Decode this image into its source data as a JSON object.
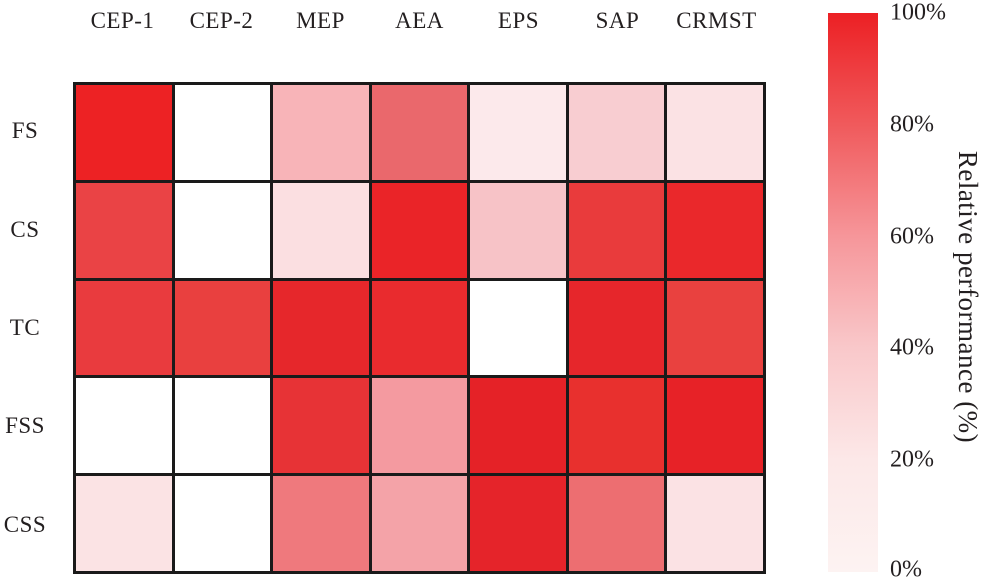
{
  "figure": {
    "background": "#ffffff",
    "text_color": "#231f20",
    "grid_line_color": "#1a1a1a"
  },
  "chart_data": {
    "type": "heatmap",
    "title": "",
    "xlabel": "",
    "ylabel": "",
    "columns": [
      "CEP-1",
      "CEP-2",
      "MEP",
      "AEA",
      "EPS",
      "SAP",
      "CRMST"
    ],
    "rows": [
      "FS",
      "CS",
      "TC",
      "FSS",
      "CSS"
    ],
    "value_unit": "%",
    "value_range": [
      0,
      100
    ],
    "values": [
      [
        100,
        0,
        47,
        76,
        18,
        37,
        22
      ],
      [
        85,
        0,
        23,
        97,
        42,
        88,
        95
      ],
      [
        88,
        86,
        97,
        93,
        0,
        97,
        86
      ],
      [
        0,
        0,
        91,
        57,
        99,
        92,
        98
      ],
      [
        21,
        0,
        69,
        54,
        97,
        71,
        22
      ]
    ],
    "cell_colors": [
      [
        "#ED2224",
        "#FFFFFF",
        "#F8B4B8",
        "#EA686C",
        "#FCE9EB",
        "#F8CDD1",
        "#FBE2E4"
      ],
      [
        "#EA4345",
        "#FFFFFF",
        "#FBDFE1",
        "#EA2428",
        "#F7C3C7",
        "#E93B3C",
        "#EA282B"
      ],
      [
        "#E93B3E",
        "#E9403F",
        "#E6272B",
        "#E92B2E",
        "#FFFFFF",
        "#E6262B",
        "#E9413F"
      ],
      [
        "#FFFFFF",
        "#FFFFFF",
        "#E73336",
        "#F49AA0",
        "#E52227",
        "#E8302E",
        "#E72227"
      ],
      [
        "#FBE3E4",
        "#FFFFFF",
        "#EF797D",
        "#F4A3A8",
        "#E5242A",
        "#ED6E71",
        "#FBE2E4"
      ]
    ],
    "grid": true,
    "legend_position": "right",
    "colorbar": {
      "label": "Relative performance (%)",
      "tick_labels": [
        "100%",
        "80%",
        "60%",
        "40%",
        "20%",
        "0%"
      ],
      "tick_values": [
        100,
        80,
        60,
        40,
        20,
        0
      ],
      "gradient_stops_top_to_bottom": [
        "#EC2024",
        "#F05A5C",
        "#F6969A",
        "#F9C8CA",
        "#FCE8E8",
        "#FDF3F2"
      ]
    }
  }
}
